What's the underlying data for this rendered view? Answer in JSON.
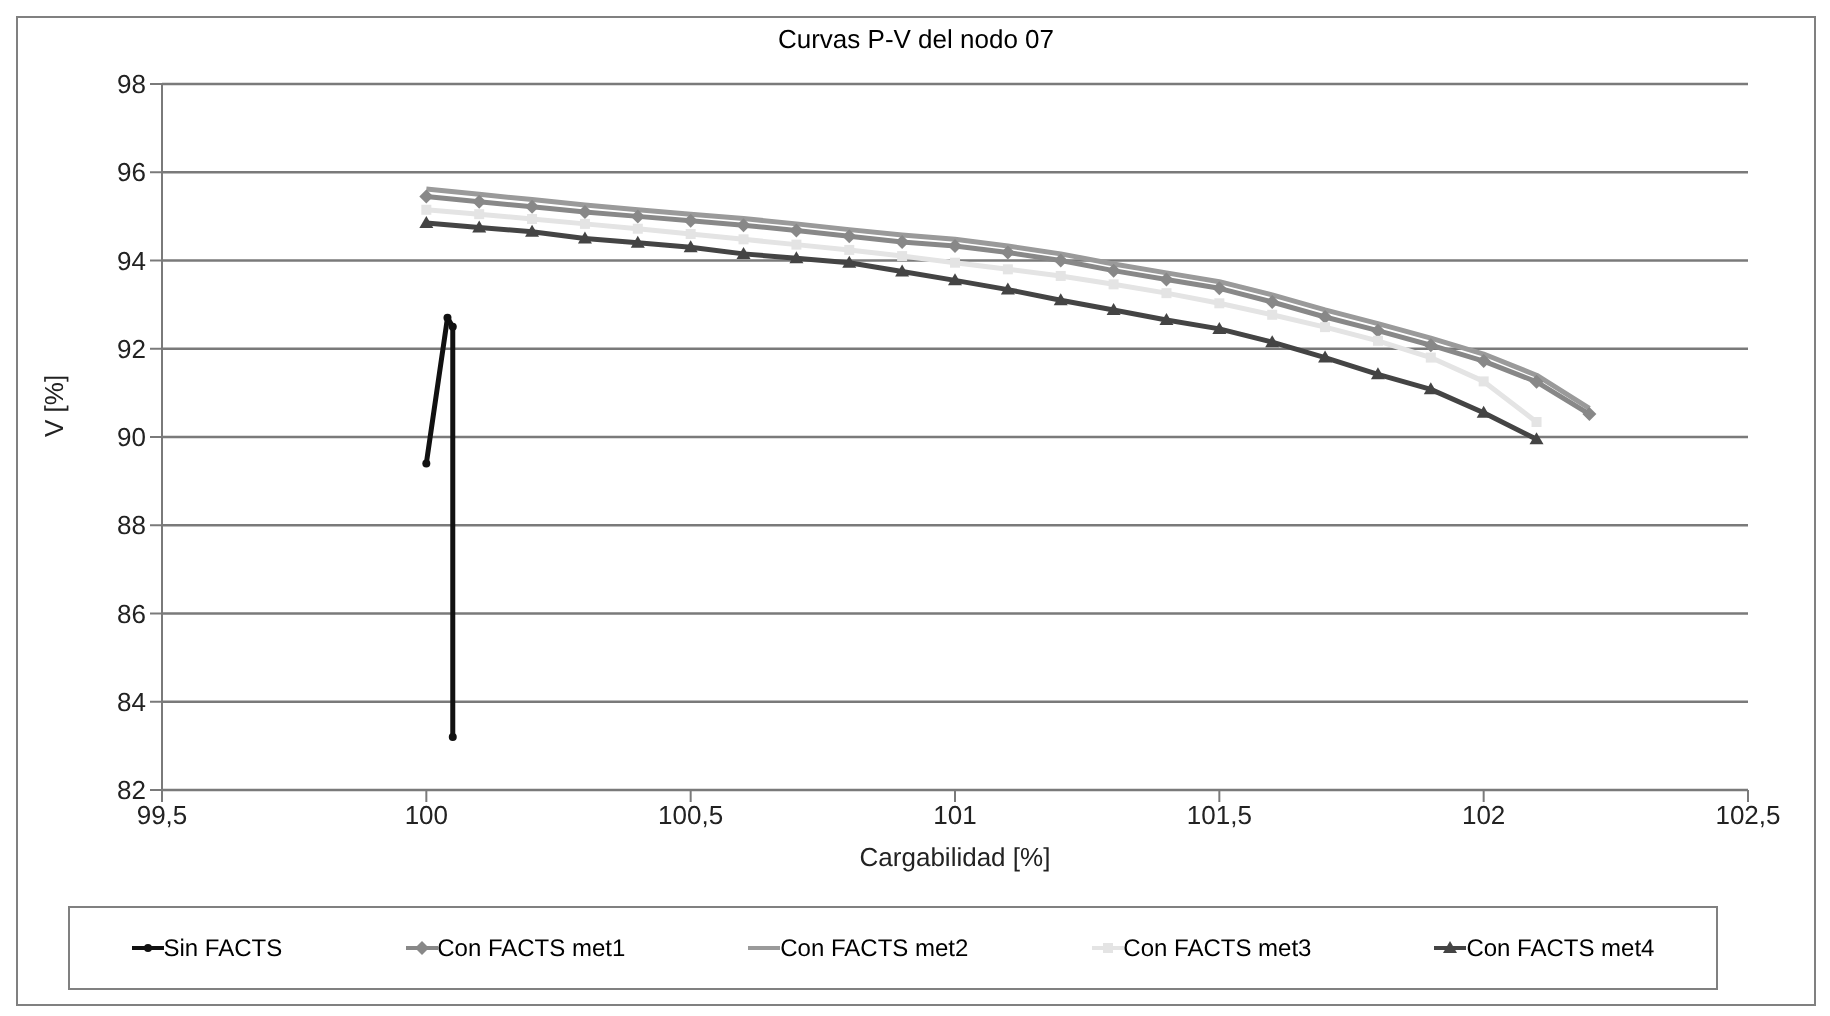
{
  "chart_data": {
    "type": "line",
    "title": "Curvas P-V del nodo 07",
    "xlabel": "Cargabilidad [%]",
    "ylabel": "V [%]",
    "xlim": [
      99.5,
      102.5
    ],
    "xticks": [
      {
        "value": 99.5,
        "label": "99,5"
      },
      100,
      {
        "value": 100.5,
        "label": "100,5"
      },
      101,
      {
        "value": 101.5,
        "label": "101,5"
      },
      102,
      {
        "value": 102.5,
        "label": "102,5"
      }
    ],
    "ylim": [
      82,
      98
    ],
    "yticks": [
      82,
      84,
      86,
      88,
      90,
      92,
      94,
      96,
      98
    ],
    "grid": "y",
    "legend": "bottom",
    "series": [
      {
        "name": "Sin FACTS",
        "color": "#111111",
        "marker": "circle",
        "x": [
          100,
          100.04,
          100.05,
          100.05
        ],
        "values": [
          89.4,
          92.7,
          92.5,
          83.2
        ]
      },
      {
        "name": "Con FACTS met1",
        "color": "#888888",
        "marker": "diamond",
        "x": [
          100,
          100.1,
          100.2,
          100.3,
          100.4,
          100.5,
          100.6,
          100.7,
          100.8,
          100.9,
          101,
          101.1,
          101.2,
          101.3,
          101.4,
          101.5,
          101.6,
          101.7,
          101.8,
          101.9,
          102,
          102.1,
          102.2
        ],
        "values": [
          95.45,
          95.33,
          95.22,
          95.1,
          95.0,
          94.9,
          94.8,
          94.68,
          94.55,
          94.42,
          94.33,
          94.18,
          94.0,
          93.77,
          93.57,
          93.37,
          93.06,
          92.72,
          92.41,
          92.08,
          91.72,
          91.25,
          90.52
        ]
      },
      {
        "name": "Con FACTS met2",
        "color": "#9a9a9a",
        "marker": "none",
        "x": [
          100,
          100.1,
          100.2,
          100.3,
          100.4,
          100.5,
          100.6,
          100.7,
          100.8,
          100.9,
          101,
          101.1,
          101.2,
          101.3,
          101.4,
          101.5,
          101.6,
          101.7,
          101.8,
          101.9,
          102,
          102.1,
          102.2
        ],
        "values": [
          95.62,
          95.5,
          95.38,
          95.26,
          95.15,
          95.05,
          94.95,
          94.83,
          94.7,
          94.58,
          94.48,
          94.33,
          94.15,
          93.92,
          93.72,
          93.52,
          93.22,
          92.88,
          92.57,
          92.24,
          91.88,
          91.4,
          90.65
        ]
      },
      {
        "name": "Con FACTS met3",
        "color": "#e4e4e4",
        "marker": "square",
        "x": [
          100,
          100.1,
          100.2,
          100.3,
          100.4,
          100.5,
          100.6,
          100.7,
          100.8,
          100.9,
          101,
          101.1,
          101.2,
          101.3,
          101.4,
          101.5,
          101.6,
          101.7,
          101.8,
          101.9,
          102,
          102.1
        ],
        "values": [
          95.15,
          95.05,
          94.94,
          94.83,
          94.72,
          94.6,
          94.48,
          94.36,
          94.24,
          94.1,
          93.95,
          93.8,
          93.65,
          93.46,
          93.26,
          93.03,
          92.77,
          92.49,
          92.18,
          91.8,
          91.26,
          90.34
        ]
      },
      {
        "name": "Con FACTS met4",
        "color": "#444444",
        "marker": "triangle",
        "x": [
          100,
          100.1,
          100.2,
          100.3,
          100.4,
          100.5,
          100.6,
          100.7,
          100.8,
          100.9,
          101,
          101.1,
          101.2,
          101.3,
          101.4,
          101.5,
          101.6,
          101.7,
          101.8,
          101.9,
          102,
          102.1
        ],
        "values": [
          94.85,
          94.75,
          94.65,
          94.5,
          94.4,
          94.3,
          94.15,
          94.05,
          93.95,
          93.75,
          93.55,
          93.34,
          93.1,
          92.88,
          92.65,
          92.45,
          92.15,
          91.8,
          91.42,
          91.08,
          90.55,
          89.95
        ]
      }
    ]
  }
}
